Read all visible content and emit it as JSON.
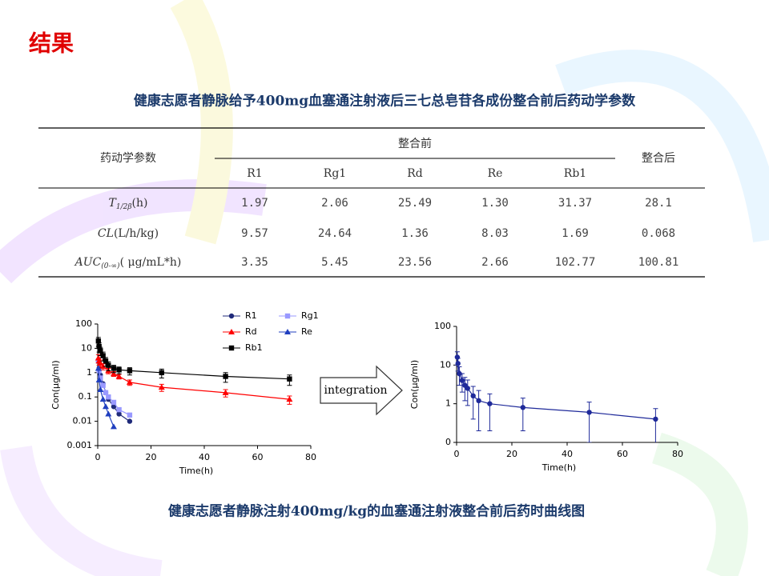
{
  "slide_title": "结果",
  "table_title": "健康志愿者静脉给予400mg血塞通注射液后三七总皂苷各成份整合前后药动学参数",
  "table": {
    "param_header": "药动学参数",
    "group_before": "整合前",
    "group_after": "整合后",
    "columns": [
      "R1",
      "Rg1",
      "Rd",
      "Re",
      "Rb1"
    ],
    "rows": [
      {
        "symbol": "T",
        "sub": "1/2β",
        "unit": "(h)",
        "values": [
          "1.97",
          "2.06",
          "25.49",
          "1.30",
          "31.37"
        ],
        "after": "28.1"
      },
      {
        "symbol": "CL",
        "unit": "(L/h/kg)",
        "values": [
          "9.57",
          "24.64",
          "1.36",
          "8.03",
          "1.69"
        ],
        "after": "0.068"
      },
      {
        "symbol": "AUC",
        "sub": "(0-∞)",
        "unit": "( μg/mL*h)",
        "values": [
          "3.35",
          "5.45",
          "23.56",
          "2.66",
          "102.77"
        ],
        "after": "100.81"
      }
    ]
  },
  "charts": [
    {
      "type": "line",
      "log_y": true,
      "xlabel": "Time(h)",
      "ylabel": "Con(μg/ml)",
      "xlim": [
        0,
        80
      ],
      "xticks": [
        0,
        20,
        40,
        60,
        80
      ],
      "ylim": [
        0.001,
        100
      ],
      "yticks": [
        0.001,
        0.01,
        0.1,
        1,
        10,
        100
      ],
      "series": [
        {
          "name": "R1",
          "color": "#1f2a7a",
          "marker": "circle",
          "x": [
            0.25,
            0.5,
            1,
            2,
            3,
            4,
            6,
            8,
            12
          ],
          "values": [
            3,
            1.5,
            0.8,
            0.35,
            0.15,
            0.08,
            0.04,
            0.02,
            0.01
          ]
        },
        {
          "name": "Rg1",
          "color": "#9999ff",
          "marker": "square",
          "x": [
            0.25,
            0.5,
            1,
            2,
            3,
            4,
            6,
            8,
            12
          ],
          "values": [
            3,
            1.2,
            0.6,
            0.3,
            0.15,
            0.1,
            0.06,
            0.03,
            0.018
          ]
        },
        {
          "name": "Rd",
          "color": "#ff0000",
          "marker": "triangle",
          "x": [
            0.25,
            0.5,
            1,
            2,
            4,
            6,
            8,
            12,
            24,
            48,
            72
          ],
          "values": [
            4,
            3,
            2.5,
            1.8,
            1.2,
            0.9,
            0.7,
            0.4,
            0.25,
            0.15,
            0.08
          ],
          "errors": [
            1.5,
            1,
            0.8,
            0.5,
            0.3,
            0.2,
            0.15,
            0.1,
            0.08,
            0.05,
            0.03
          ]
        },
        {
          "name": "Re",
          "color": "#1f3fbf",
          "marker": "triangle",
          "x": [
            0.25,
            0.5,
            1,
            2,
            3,
            4,
            6
          ],
          "values": [
            1.5,
            0.5,
            0.2,
            0.08,
            0.04,
            0.02,
            0.006
          ]
        },
        {
          "name": "Rb1",
          "color": "#000000",
          "marker": "square",
          "x": [
            0.25,
            0.5,
            1,
            2,
            3,
            4,
            6,
            8,
            12,
            24,
            48,
            72
          ],
          "values": [
            20,
            12,
            8,
            5,
            3,
            2,
            1.5,
            1.3,
            1.2,
            1.0,
            0.7,
            0.55
          ],
          "errors": [
            8,
            5,
            3,
            2,
            1.2,
            0.8,
            0.5,
            0.4,
            0.4,
            0.4,
            0.3,
            0.25
          ]
        }
      ]
    },
    {
      "type": "line",
      "log_y": true,
      "xlabel": "Time(h)",
      "ylabel": "Con(μg/ml)",
      "xlim": [
        0,
        80
      ],
      "xticks": [
        0,
        20,
        40,
        60,
        80
      ],
      "ylim": [
        0.1,
        100
      ],
      "yticks": [
        {
          "value": 0.1,
          "label": "0"
        },
        1,
        10,
        100
      ],
      "series": [
        {
          "color": "#1f2a9a",
          "marker": "circle",
          "x": [
            0.25,
            0.5,
            1,
            2,
            3,
            4,
            6,
            8,
            12,
            24,
            48,
            72
          ],
          "values": [
            16,
            11,
            6,
            4,
            3,
            2.5,
            1.6,
            1.2,
            1.0,
            0.8,
            0.6,
            0.4
          ],
          "errors": [
            6,
            4,
            3,
            2,
            1.8,
            1.6,
            1.2,
            1,
            0.8,
            0.6,
            0.5,
            0.35
          ]
        }
      ]
    }
  ],
  "arrow_label": "integration",
  "caption": "健康志愿者静脉注射400mg/kg的血塞通注射液整合前后药时曲线图"
}
